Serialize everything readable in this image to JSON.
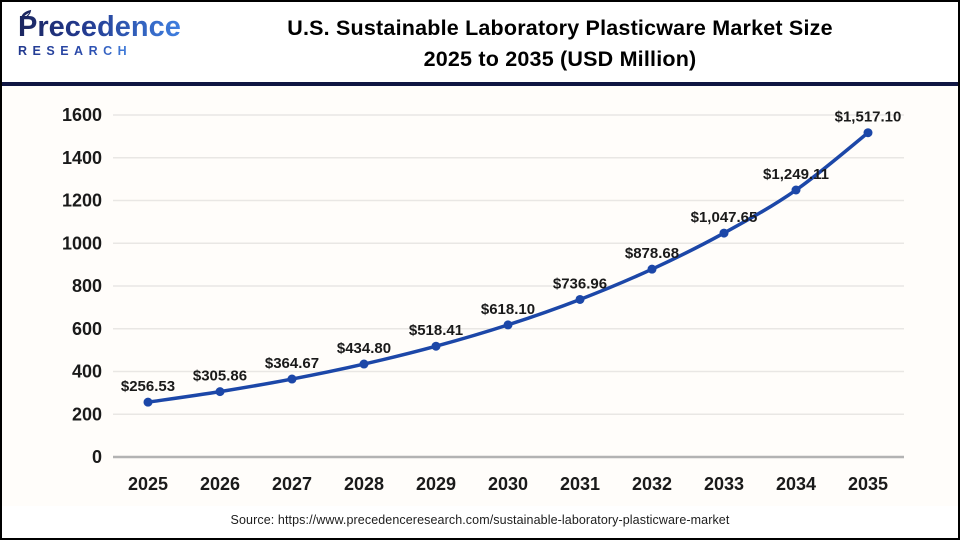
{
  "header": {
    "logo": {
      "name": "Precedence",
      "subtitle": "RESEARCH"
    },
    "title_line1": "U.S. Sustainable Laboratory Plasticware Market Size",
    "title_line2": "2025 to 2035 (USD Million)"
  },
  "chart_data": {
    "type": "line",
    "title": "U.S. Sustainable Laboratory Plasticware Market Size 2025 to 2035 (USD Million)",
    "categories": [
      "2025",
      "2026",
      "2027",
      "2028",
      "2029",
      "2030",
      "2031",
      "2032",
      "2033",
      "2034",
      "2035"
    ],
    "values": [
      256.53,
      305.86,
      364.67,
      434.8,
      518.41,
      618.1,
      736.96,
      878.68,
      1047.65,
      1249.11,
      1517.1
    ],
    "point_labels": [
      "$256.53",
      "$305.86",
      "$364.67",
      "$434.80",
      "$518.41",
      "$618.10",
      "$736.96",
      "$878.68",
      "$1,047.65",
      "$1,249.11",
      "$1,517.10"
    ],
    "xlabel": "",
    "ylabel": "",
    "ylim": [
      0,
      1600
    ],
    "yticks": [
      0,
      200,
      400,
      600,
      800,
      1000,
      1200,
      1400,
      1600
    ],
    "grid": true,
    "legend": "none",
    "line_color": "#1c47a8",
    "marker_color": "#1c47a8",
    "grid_color": "#e9e7e4",
    "axis_color": "#b3b3b3",
    "tick_label_color": "#1a1a1a",
    "data_label_color": "#1a1a1a"
  },
  "footer": {
    "source": "Source: https://www.precedenceresearch.com/sustainable-laboratory-plasticware-market"
  }
}
